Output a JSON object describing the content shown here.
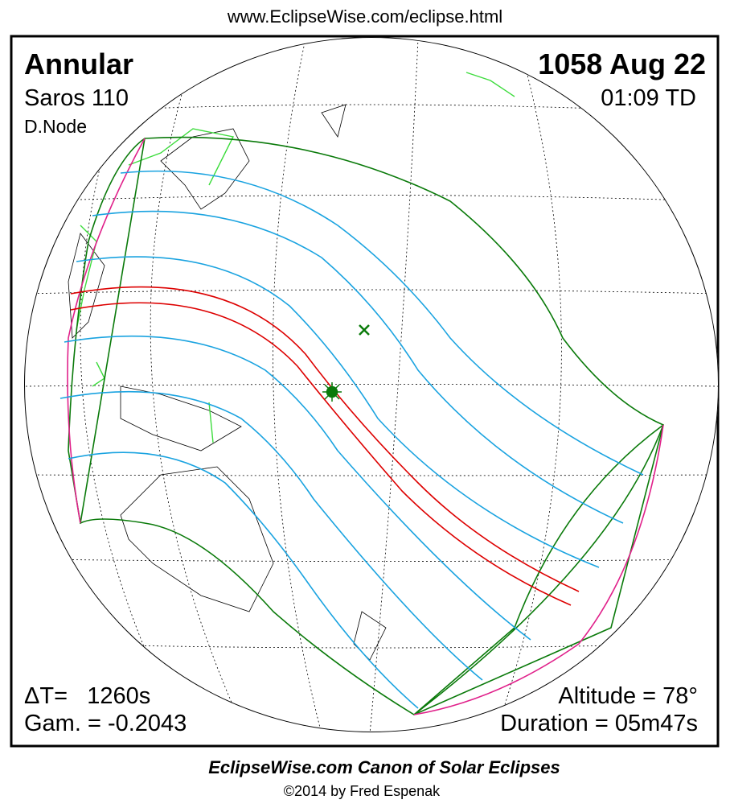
{
  "header": {
    "url": "www.EclipseWise.com/eclipse.html"
  },
  "panel": {
    "eclipse_type": "Annular",
    "date": "1058 Aug 22",
    "saros": "Saros 110",
    "time": "01:09 TD",
    "node": "D.Node",
    "delta_t": "ΔT=   1260s",
    "gamma": "Gam. = -0.2043",
    "altitude": "Altitude = 78°",
    "duration": "Duration = 05m47s"
  },
  "footer": {
    "canon": "EclipseWise.com Canon of Solar Eclipses",
    "copyright": "©2014 by Fred Espenak"
  }
}
